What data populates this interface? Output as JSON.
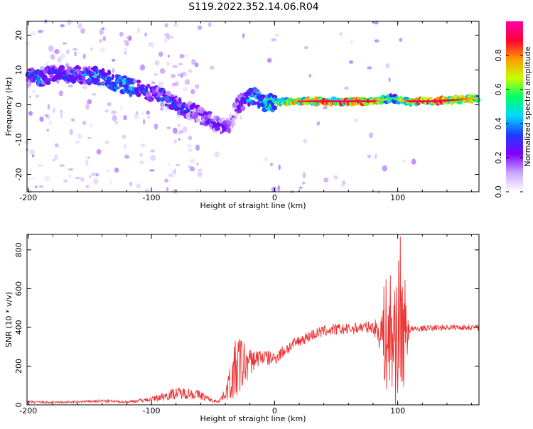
{
  "figure_title": "S119.2022.352.14.06.R04",
  "chart_data": [
    {
      "type": "heatmap",
      "title": "",
      "xlabel": "Height of straight line (km)",
      "ylabel": "Frequency (Hz)",
      "xlim": [
        -201,
        166
      ],
      "ylim": [
        -25,
        24
      ],
      "xticks": [
        -200,
        -100,
        0,
        100
      ],
      "yticks": [
        -20,
        -10,
        0,
        10,
        20
      ],
      "colorbar": {
        "label": "Normalized spectral amplitude",
        "range": [
          0,
          1
        ],
        "ticks": [
          0.0,
          0.2,
          0.4,
          0.6,
          0.8
        ],
        "colormap": [
          "#ffffff",
          "#c9a8ff",
          "#7f00ff",
          "#1f3bff",
          "#00d8ff",
          "#00ff66",
          "#c8ff00",
          "#ff9a00",
          "#ff0033",
          "#ff00aa"
        ]
      },
      "ridge": {
        "x": [
          -200,
          -190,
          -180,
          -170,
          -160,
          -150,
          -140,
          -130,
          -120,
          -110,
          -100,
          -90,
          -80,
          -70,
          -60,
          -50,
          -40,
          -35,
          -30,
          -25,
          -20,
          -15,
          -10,
          -5,
          0,
          10,
          20,
          40,
          60,
          80,
          90,
          95,
          100,
          110,
          130,
          150,
          166
        ],
        "y": [
          9,
          7.5,
          9,
          8.5,
          8.5,
          8.5,
          8,
          6.5,
          5.5,
          4.5,
          3.5,
          2,
          0,
          -1.5,
          -3,
          -5,
          -6.5,
          -5,
          0,
          1,
          2.5,
          2.5,
          0.5,
          0.5,
          0.5,
          1,
          1,
          1,
          1,
          1,
          1.5,
          2,
          1.5,
          1,
          1,
          1.5,
          2
        ],
        "amplitude": [
          0.3,
          0.4,
          0.3,
          0.35,
          0.35,
          0.4,
          0.45,
          0.4,
          0.45,
          0.35,
          0.3,
          0.35,
          0.35,
          0.3,
          0.25,
          0.3,
          0.25,
          0.2,
          0.25,
          0.35,
          0.45,
          0.4,
          0.5,
          0.55,
          0.6,
          0.7,
          0.75,
          0.8,
          0.85,
          0.8,
          0.55,
          0.45,
          0.5,
          0.8,
          0.85,
          0.75,
          0.6
        ]
      }
    },
    {
      "type": "line",
      "title": "",
      "xlabel": "Height of straight line (km)",
      "ylabel": "SNR (10 * v/v)",
      "xlim": [
        -201,
        166
      ],
      "ylim": [
        0,
        880
      ],
      "xticks": [
        -200,
        -100,
        0,
        100
      ],
      "yticks": [
        0,
        200,
        400,
        600,
        800
      ],
      "color": "#ee3333",
      "series": [
        {
          "x": [
            -200,
            -180,
            -160,
            -140,
            -120,
            -110,
            -100,
            -90,
            -80,
            -70,
            -60,
            -50,
            -45,
            -40,
            -35,
            -30,
            -25,
            -20,
            -15,
            -10,
            -5,
            0,
            10,
            20,
            30,
            40,
            50,
            60,
            70,
            80,
            85,
            90,
            95,
            100,
            105,
            110,
            115,
            120,
            140,
            166
          ],
          "mean": [
            15,
            12,
            15,
            20,
            15,
            22,
            28,
            45,
            60,
            60,
            50,
            20,
            20,
            60,
            130,
            200,
            210,
            220,
            240,
            250,
            240,
            240,
            290,
            330,
            360,
            380,
            390,
            390,
            400,
            400,
            380,
            360,
            350,
            380,
            400,
            390,
            390,
            395,
            400,
            400
          ],
          "spread": [
            6,
            6,
            6,
            8,
            6,
            10,
            12,
            25,
            30,
            30,
            25,
            8,
            8,
            30,
            110,
            190,
            130,
            70,
            50,
            45,
            40,
            35,
            35,
            30,
            30,
            30,
            30,
            30,
            30,
            30,
            90,
            300,
            380,
            380,
            320,
            20,
            15,
            15,
            15,
            15
          ],
          "peak": {
            "x": 102,
            "y": 870
          }
        }
      ]
    }
  ]
}
